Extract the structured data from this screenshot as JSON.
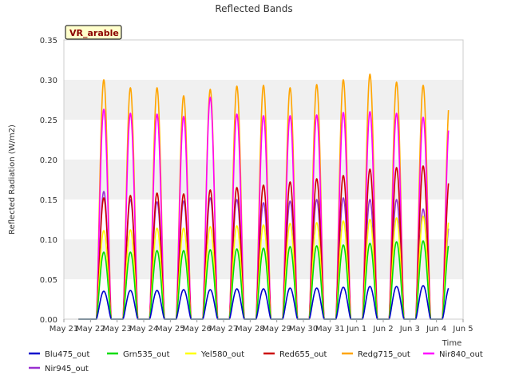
{
  "chart_data": {
    "type": "line",
    "title": "Reflected Bands",
    "ylabel": "Reflected Radiation (W/m2)",
    "xlabel": "Time",
    "badge": "VR_arable",
    "ylim": [
      0,
      0.35
    ],
    "yticks": [
      "0.00",
      "0.05",
      "0.10",
      "0.15",
      "0.20",
      "0.25",
      "0.30",
      "0.35"
    ],
    "xlim": [
      0,
      15
    ],
    "xticks": [
      "May 21",
      "May 22",
      "May 23",
      "May 24",
      "May 25",
      "May 26",
      "May 27",
      "May 28",
      "May 29",
      "May 30",
      "May 31",
      "Jun 1",
      "Jun 2",
      "Jun 3",
      "Jun 4",
      "Jun 5"
    ],
    "grid": "horizontal bands",
    "legend_position": "bottom",
    "day_peak_days": [
      "May 22",
      "May 23",
      "May 24",
      "May 25",
      "May 26",
      "May 27",
      "May 28",
      "May 29",
      "May 30",
      "May 31",
      "Jun 1",
      "Jun 2",
      "Jun 3",
      "Jun 4"
    ],
    "series": [
      {
        "name": "Blu475_out",
        "color": "#0000cc",
        "peaks": [
          0.035,
          0.036,
          0.036,
          0.037,
          0.037,
          0.038,
          0.038,
          0.039,
          0.039,
          0.04,
          0.041,
          0.041,
          0.042,
          0.041
        ]
      },
      {
        "name": "Grn535_out",
        "color": "#00dd00",
        "peaks": [
          0.084,
          0.084,
          0.086,
          0.086,
          0.087,
          0.088,
          0.089,
          0.091,
          0.092,
          0.093,
          0.095,
          0.097,
          0.098,
          0.097
        ]
      },
      {
        "name": "Yel580_out",
        "color": "#ffff00",
        "peaks": [
          0.111,
          0.112,
          0.114,
          0.114,
          0.116,
          0.117,
          0.118,
          0.12,
          0.121,
          0.123,
          0.125,
          0.127,
          0.129,
          0.128
        ]
      },
      {
        "name": "Red655_out",
        "color": "#cc0000",
        "peaks": [
          0.152,
          0.155,
          0.158,
          0.157,
          0.162,
          0.165,
          0.168,
          0.172,
          0.176,
          0.18,
          0.188,
          0.19,
          0.192,
          0.18
        ]
      },
      {
        "name": "Redg715_out",
        "color": "#ffa500",
        "peaks": [
          0.3,
          0.29,
          0.29,
          0.28,
          0.288,
          0.292,
          0.293,
          0.29,
          0.294,
          0.3,
          0.307,
          0.297,
          0.293,
          0.277
        ]
      },
      {
        "name": "Nir840_out",
        "color": "#ff00ff",
        "peaks": [
          0.263,
          0.258,
          0.257,
          0.254,
          0.278,
          0.257,
          0.255,
          0.255,
          0.256,
          0.259,
          0.26,
          0.258,
          0.253,
          0.25
        ]
      },
      {
        "name": "Nir945_out",
        "color": "#9a30d0",
        "peaks": [
          0.16,
          0.15,
          0.147,
          0.148,
          0.152,
          0.15,
          0.146,
          0.148,
          0.15,
          0.152,
          0.15,
          0.15,
          0.138,
          0.12
        ]
      }
    ]
  }
}
